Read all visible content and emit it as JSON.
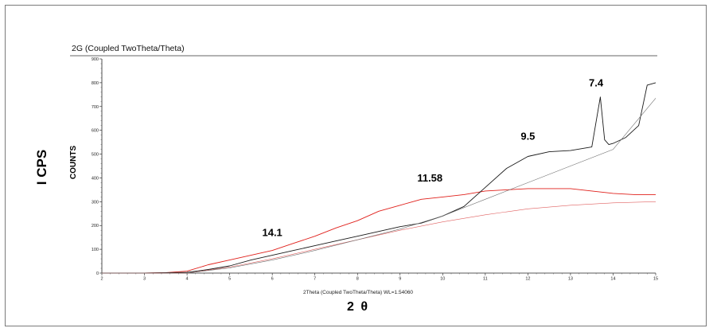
{
  "chart_data": {
    "type": "line",
    "title": "2G (Coupled TwoTheta/Theta)",
    "xlabel": "2Theta (Coupled TwoTheta/Theta) WL=1.54060",
    "x_symbol": "2 θ",
    "ylabel_outer": "I CPS",
    "ylabel_inner": "COUNTS",
    "xlim": [
      2,
      15
    ],
    "ylim": [
      0,
      900
    ],
    "x_ticks": [
      "2",
      "3",
      "4",
      "5",
      "6",
      "7",
      "8",
      "9",
      "10",
      "11",
      "12",
      "13",
      "14",
      "15"
    ],
    "y_ticks": [
      "0",
      "100",
      "200",
      "300",
      "400",
      "500",
      "600",
      "700",
      "800",
      "900"
    ],
    "grid": false,
    "legend": "none",
    "series": [
      {
        "color": "#e0201b",
        "x": [
          2,
          3,
          3.5,
          4,
          4.5,
          5,
          5.5,
          6,
          6.5,
          7,
          7.5,
          8,
          8.5,
          9,
          9.5,
          10,
          10.5,
          11,
          11.5,
          12,
          12.5,
          13,
          13.5,
          14,
          14.5,
          15
        ],
        "y": [
          0,
          0,
          2,
          8,
          35,
          55,
          75,
          95,
          125,
          155,
          190,
          220,
          260,
          285,
          310,
          320,
          330,
          345,
          350,
          355,
          355,
          355,
          345,
          335,
          330,
          330
        ]
      },
      {
        "color": "#1a1a1a",
        "x": [
          2,
          3,
          4,
          4.5,
          5,
          5.5,
          6,
          6.5,
          7,
          7.5,
          8,
          8.5,
          9,
          9.5,
          10,
          10.5,
          11,
          11.5,
          12,
          12.5,
          13,
          13.5,
          13.7,
          13.8,
          13.9,
          14,
          14.3,
          14.6,
          14.8,
          15
        ],
        "y": [
          0,
          0,
          3,
          15,
          30,
          55,
          75,
          95,
          115,
          135,
          155,
          175,
          195,
          210,
          240,
          280,
          360,
          440,
          490,
          510,
          515,
          530,
          740,
          560,
          540,
          545,
          570,
          620,
          790,
          800
        ]
      },
      {
        "color": "#e06060",
        "x": [
          2,
          4,
          5,
          6,
          7,
          8,
          9,
          10,
          11,
          12,
          13,
          14,
          15
        ],
        "y": [
          0,
          0,
          25,
          60,
          100,
          140,
          180,
          215,
          245,
          270,
          285,
          295,
          300
        ]
      },
      {
        "color": "#707070",
        "x": [
          2,
          4,
          5,
          6,
          7,
          8,
          9,
          10,
          11,
          12,
          13,
          14,
          15
        ],
        "y": [
          0,
          0,
          22,
          55,
          95,
          140,
          185,
          240,
          310,
          380,
          450,
          520,
          735
        ]
      }
    ],
    "annotations": [
      {
        "text": "14.1",
        "x": 6.0,
        "y": 155
      },
      {
        "text": "11.58",
        "x": 9.7,
        "y": 385
      },
      {
        "text": "9.5",
        "x": 12.0,
        "y": 560
      },
      {
        "text": "7.4",
        "x": 13.6,
        "y": 785
      }
    ]
  }
}
